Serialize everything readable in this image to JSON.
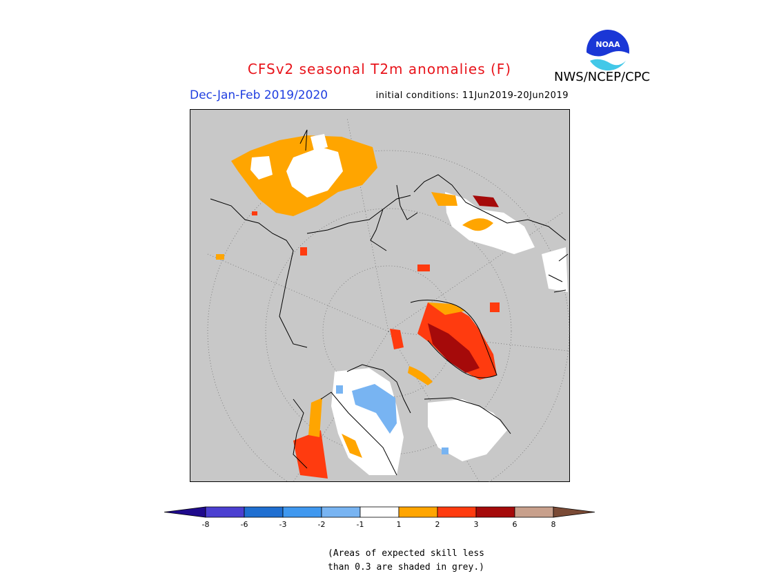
{
  "title": "CFSv2 seasonal T2m anomalies (F)",
  "org": "NWS/NCEP/CPC",
  "period": "Dec-Jan-Feb 2019/2020",
  "initial_conditions": "initial conditions: 11Jun2019-20Jun2019",
  "logo_text": "NOAA",
  "note_lines": [
    "(Areas of expected skill less",
    "than 0.3 are shaded in grey.)"
  ],
  "colorbar": {
    "tick_labels": [
      "-8",
      "-6",
      "-3",
      "-2",
      "-1",
      "1",
      "2",
      "3",
      "6",
      "8"
    ],
    "colors": [
      "#1f0a8c",
      "#4b3fd1",
      "#1f6fd1",
      "#3f98ef",
      "#78b4f2",
      "#ffffff",
      "#ffa500",
      "#ff3b0f",
      "#a50a0a",
      "#c8a08c",
      "#7a4a35"
    ]
  },
  "map": {
    "background": "#c8c8c8",
    "land_color": "#ffffff",
    "outline_color": "#000000"
  }
}
